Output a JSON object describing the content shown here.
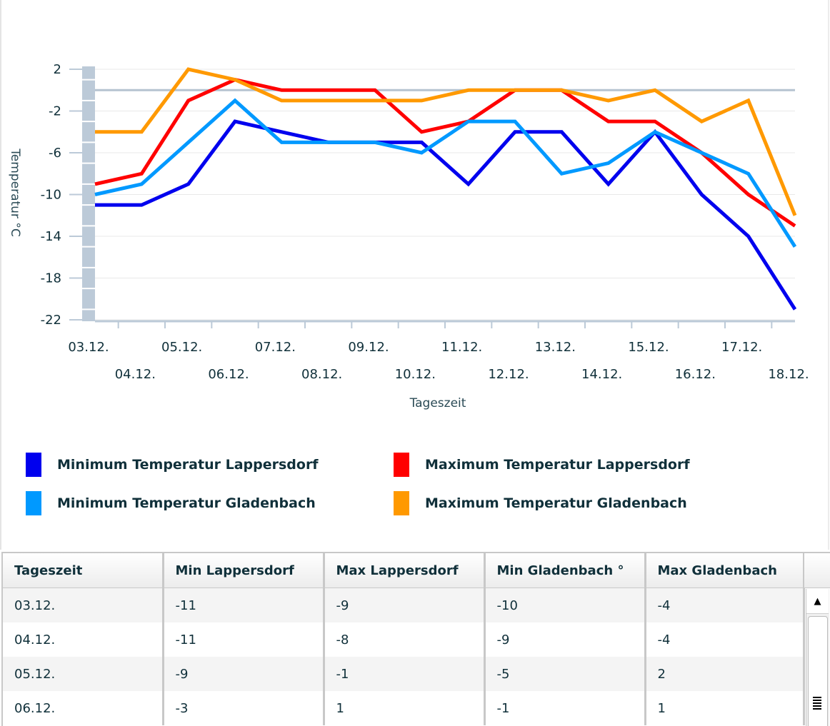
{
  "chart_data": {
    "type": "line",
    "title": "",
    "xlabel": "Tageszeit",
    "ylabel": "Temperatur °C",
    "ylim": [
      -22,
      2
    ],
    "yticks": [
      2,
      -2,
      -6,
      -10,
      -14,
      -18,
      -22
    ],
    "ytick_labels": [
      "2",
      "-2",
      "-6",
      "-10",
      "-14",
      "-18",
      "-22"
    ],
    "grid": true,
    "legend_position": "bottom",
    "categories": [
      "03.12.",
      "04.12.",
      "05.12.",
      "06.12.",
      "07.12.",
      "08.12.",
      "09.12.",
      "10.12.",
      "11.12.",
      "12.12.",
      "13.12.",
      "14.12.",
      "15.12.",
      "16.12.",
      "17.12.",
      "18.12."
    ],
    "series": [
      {
        "name": "Minimum Temperatur Lappersdorf",
        "color": "#0000ee",
        "values": [
          -11,
          -11,
          -9,
          -3,
          -4,
          -5,
          -5,
          -5,
          -9,
          -4,
          -4,
          -9,
          -4,
          -10,
          -14,
          -21
        ]
      },
      {
        "name": "Maximum Temperatur Lappersdorf",
        "color": "#ff0000",
        "values": [
          -9,
          -8,
          -1,
          1,
          0,
          0,
          0,
          -4,
          -3,
          0,
          0,
          -3,
          -3,
          -6,
          -10,
          -13
        ]
      },
      {
        "name": "Minimum Temperatur Gladenbach",
        "color": "#0099ff",
        "values": [
          -10,
          -9,
          -5,
          -1,
          -5,
          -5,
          -5,
          -6,
          -3,
          -3,
          -8,
          -7,
          -4,
          -6,
          -8,
          -15
        ]
      },
      {
        "name": "Maximum Temperatur Gladenbach",
        "color": "#ff9900",
        "values": [
          -4,
          -4,
          2,
          1,
          -1,
          -1,
          -1,
          -1,
          0,
          0,
          0,
          -1,
          0,
          -3,
          -1,
          -12
        ]
      }
    ]
  },
  "legend": [
    {
      "label": "Minimum Temperatur Lappersdorf",
      "color": "#0000ee"
    },
    {
      "label": "Maximum Temperatur Lappersdorf",
      "color": "#ff0000"
    },
    {
      "label": "Minimum Temperatur Gladenbach",
      "color": "#0099ff"
    },
    {
      "label": "Maximum Temperatur Gladenbach",
      "color": "#ff9900"
    }
  ],
  "table": {
    "columns": [
      "Tageszeit",
      "Min Lappersdorf",
      "Max Lappersdorf",
      "Min Gladenbach °",
      "Max Gladenbach"
    ],
    "rows": [
      [
        "03.12.",
        "-11",
        "-9",
        "-10",
        "-4"
      ],
      [
        "04.12.",
        "-11",
        "-8",
        "-9",
        "-4"
      ],
      [
        "05.12.",
        "-9",
        "-1",
        "-5",
        "2"
      ],
      [
        "06.12.",
        "-3",
        "1",
        "-1",
        "1"
      ]
    ],
    "scroll_up_icon": "▲"
  }
}
